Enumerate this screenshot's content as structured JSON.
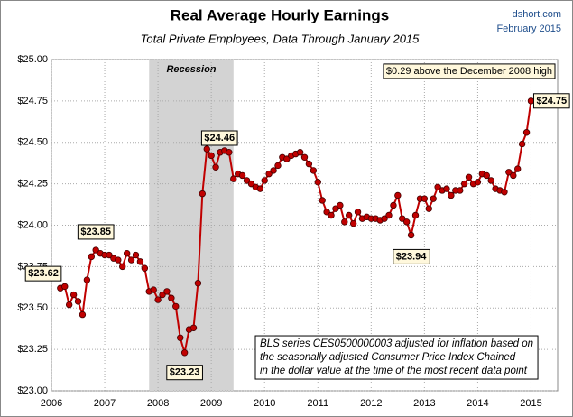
{
  "chart_data": {
    "type": "line",
    "title": "Real Average Hourly Earnings",
    "subtitle": "Total Private Employees, Data Through January 2015",
    "source": "dshort.com",
    "date": "February 2015",
    "annotation": "$0.29 above the December 2008 high",
    "notes": [
      "BLS series CES0500000003 adjusted for inflation based on",
      "the seasonally adjusted Consumer Price Index Chained",
      "in the dollar value at the time of the most recent data point"
    ],
    "recession": {
      "label": "Recession",
      "start": 2007.833,
      "end": 2009.417,
      "color": "#d3d3d3"
    },
    "x": [
      2006.167,
      2006.25,
      2006.333,
      2006.417,
      2006.5,
      2006.583,
      2006.667,
      2006.75,
      2006.833,
      2006.917,
      2007,
      2007.083,
      2007.167,
      2007.25,
      2007.333,
      2007.417,
      2007.5,
      2007.583,
      2007.667,
      2007.75,
      2007.833,
      2007.917,
      2008,
      2008.083,
      2008.167,
      2008.25,
      2008.333,
      2008.417,
      2008.5,
      2008.583,
      2008.667,
      2008.75,
      2008.833,
      2008.917,
      2009,
      2009.083,
      2009.167,
      2009.25,
      2009.333,
      2009.417,
      2009.5,
      2009.583,
      2009.667,
      2009.75,
      2009.833,
      2009.917,
      2010,
      2010.083,
      2010.167,
      2010.25,
      2010.333,
      2010.417,
      2010.5,
      2010.583,
      2010.667,
      2010.75,
      2010.833,
      2010.917,
      2011,
      2011.083,
      2011.167,
      2011.25,
      2011.333,
      2011.417,
      2011.5,
      2011.583,
      2011.667,
      2011.75,
      2011.833,
      2011.917,
      2012,
      2012.083,
      2012.167,
      2012.25,
      2012.333,
      2012.417,
      2012.5,
      2012.583,
      2012.667,
      2012.75,
      2012.833,
      2012.917,
      2013,
      2013.083,
      2013.167,
      2013.25,
      2013.333,
      2013.417,
      2013.5,
      2013.583,
      2013.667,
      2013.75,
      2013.833,
      2013.917,
      2014,
      2014.083,
      2014.167,
      2014.25,
      2014.333,
      2014.417,
      2014.5,
      2014.583,
      2014.667,
      2014.75,
      2014.833,
      2014.917,
      2015
    ],
    "series": [
      {
        "color": "#c00000",
        "values": [
          23.62,
          23.63,
          23.52,
          23.58,
          23.54,
          23.46,
          23.67,
          23.81,
          23.85,
          23.83,
          23.82,
          23.82,
          23.8,
          23.79,
          23.75,
          23.83,
          23.79,
          23.82,
          23.78,
          23.74,
          23.6,
          23.61,
          23.55,
          23.58,
          23.6,
          23.56,
          23.51,
          23.32,
          23.23,
          23.37,
          23.38,
          23.65,
          24.19,
          24.46,
          24.42,
          24.35,
          24.44,
          24.45,
          24.44,
          24.28,
          24.31,
          24.3,
          24.27,
          24.25,
          24.23,
          24.22,
          24.27,
          24.31,
          24.33,
          24.36,
          24.41,
          24.4,
          24.42,
          24.43,
          24.44,
          24.41,
          24.37,
          24.33,
          24.26,
          24.15,
          24.08,
          24.06,
          24.1,
          24.12,
          24.02,
          24.06,
          24.01,
          24.08,
          24.04,
          24.05,
          24.04,
          24.04,
          24.03,
          24.04,
          24.06,
          24.12,
          24.18,
          24.04,
          24.02,
          23.94,
          24.06,
          24.16,
          24.16,
          24.1,
          24.16,
          24.23,
          24.21,
          24.22,
          24.18,
          24.21,
          24.21,
          24.25,
          24.29,
          24.25,
          24.26,
          24.31,
          24.3,
          24.27,
          24.22,
          24.21,
          24.2,
          24.32,
          24.3,
          24.34,
          24.49,
          24.56,
          24.75
        ],
        "value_labels": [
          "$23.62",
          null,
          null,
          null,
          null,
          null,
          null,
          null,
          "$23.85",
          null,
          null,
          null,
          null,
          null,
          null,
          null,
          null,
          null,
          null,
          null,
          null,
          null,
          null,
          null,
          null,
          null,
          null,
          null,
          "$23.23",
          null,
          null,
          null,
          null,
          "$24.46",
          null,
          null,
          null,
          null,
          null,
          null,
          null,
          null,
          null,
          null,
          null,
          null,
          null,
          null,
          null,
          null,
          null,
          null,
          null,
          null,
          null,
          null,
          null,
          null,
          null,
          null,
          null,
          null,
          null,
          null,
          null,
          null,
          null,
          null,
          null,
          null,
          null,
          null,
          null,
          null,
          null,
          null,
          null,
          null,
          null,
          "$23.94",
          null,
          null,
          null,
          null,
          null,
          null,
          null,
          null,
          null,
          null,
          null,
          null,
          null,
          null,
          null,
          null,
          null,
          null,
          null,
          null,
          null,
          null,
          null,
          null,
          null,
          null,
          "$24.75"
        ]
      }
    ],
    "xlim": [
      2006,
      2015.5
    ],
    "xticks": [
      2006,
      2007,
      2008,
      2009,
      2010,
      2011,
      2012,
      2013,
      2014,
      2015
    ],
    "ylim": [
      23,
      25
    ],
    "yticks": [
      {
        "value": 23,
        "label": "$23.00"
      },
      {
        "value": 23.25,
        "label": "$23.25"
      },
      {
        "value": 23.5,
        "label": "$23.50"
      },
      {
        "value": 23.75,
        "label": "$23.75"
      },
      {
        "value": 24,
        "label": "$24.00"
      },
      {
        "value": 24.25,
        "label": "$24.25"
      },
      {
        "value": 24.5,
        "label": "$24.50"
      },
      {
        "value": 24.75,
        "label": "$24.75"
      },
      {
        "value": 25,
        "label": "$25.00"
      }
    ],
    "grid": true
  }
}
